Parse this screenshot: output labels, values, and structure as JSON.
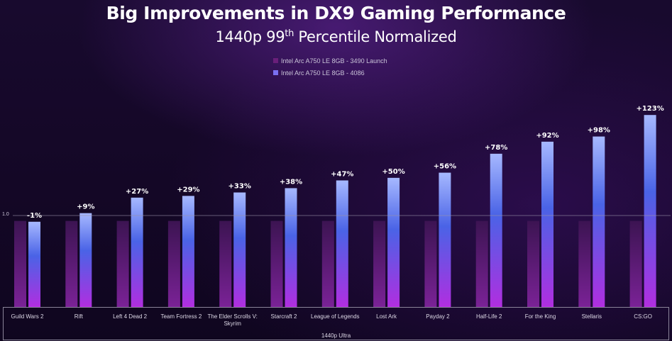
{
  "chart_data": {
    "type": "bar",
    "title": "Big Improvements in DX9 Gaming Performance",
    "subtitle_main": "1440p 99",
    "subtitle_sup": "th",
    "subtitle_rest": " Percentile Normalized",
    "xlabel": "1440p Ultra",
    "ylabel": "",
    "y_tick_label": "1.0",
    "ylim": [
      0,
      2.52
    ],
    "categories": [
      "Guild Wars 2",
      "Rift",
      "Left 4 Dead 2",
      "Team Fortress 2",
      "The Elder Scrolls V: Skyrim",
      "Starcraft 2",
      "League of Legends",
      "Lost Ark",
      "Payday 2",
      "Half-Life 2",
      "For the King",
      "Stellaris",
      "CS:GO"
    ],
    "series": [
      {
        "name": "Intel Arc A750 LE 8GB - 3490 Launch",
        "color": "#6a1f7a",
        "values": [
          1,
          1,
          1,
          1,
          1,
          1,
          1,
          1,
          1,
          1,
          1,
          1,
          1
        ]
      },
      {
        "name": "Intel Arc A750 LE 8GB - 4086",
        "color": "#5a6cf0",
        "values": [
          0.99,
          1.09,
          1.27,
          1.29,
          1.33,
          1.38,
          1.47,
          1.5,
          1.56,
          1.78,
          1.92,
          1.98,
          2.23
        ]
      }
    ],
    "data_labels": [
      "-1%",
      "+9%",
      "+27%",
      "+29%",
      "+33%",
      "+38%",
      "+47%",
      "+50%",
      "+56%",
      "+78%",
      "+92%",
      "+98%",
      "+123%"
    ]
  }
}
